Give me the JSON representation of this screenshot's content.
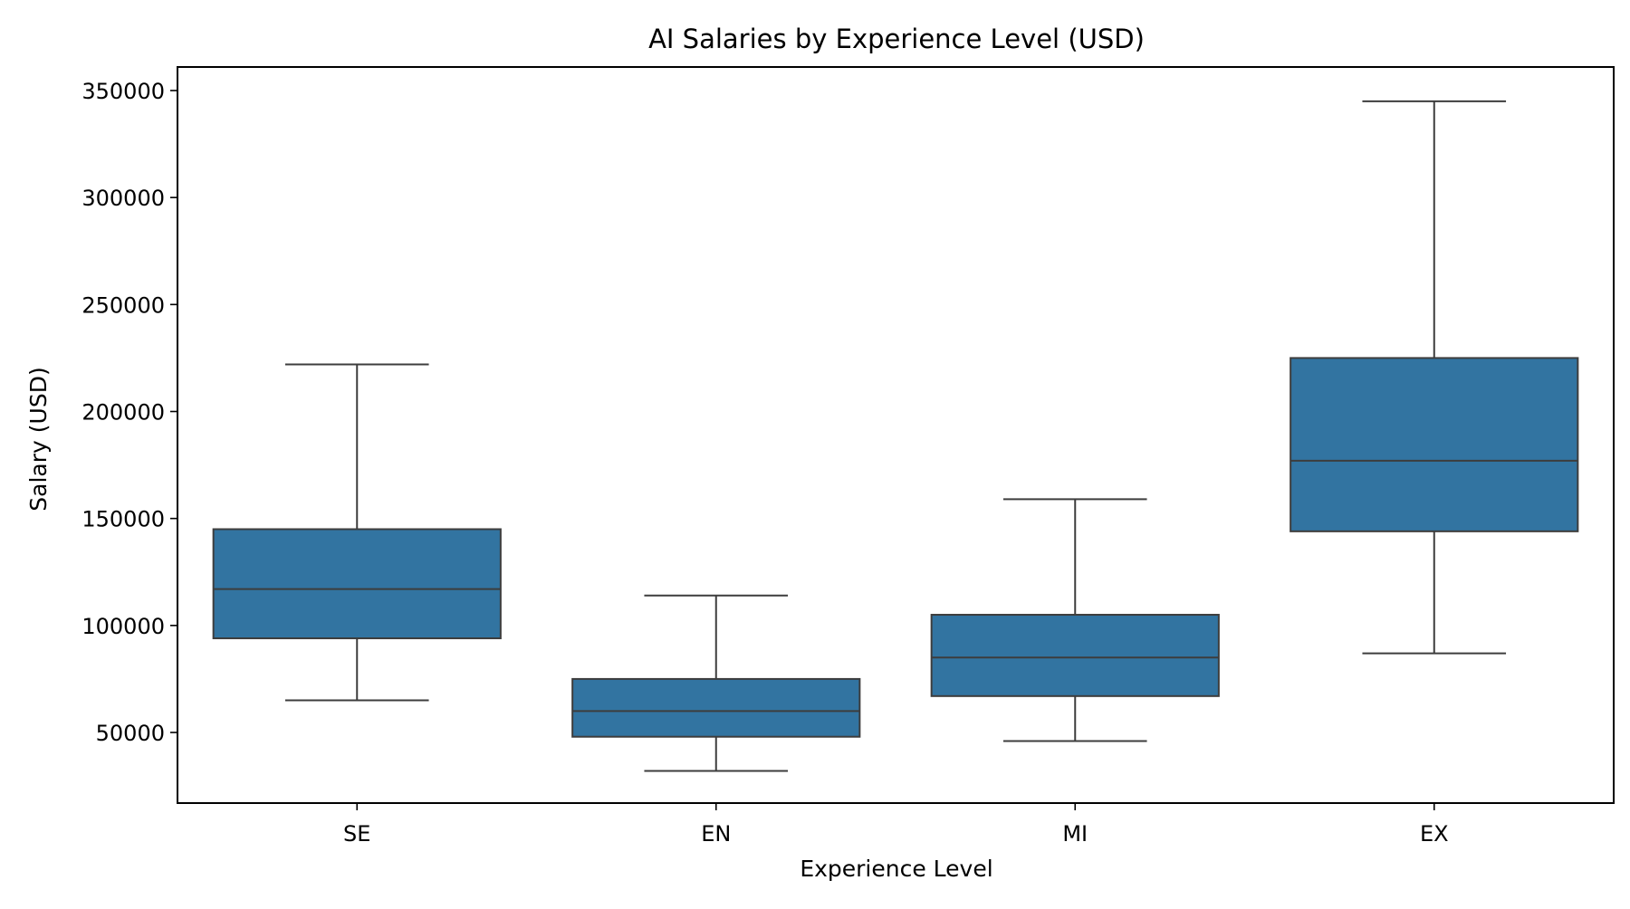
{
  "chart_data": {
    "type": "box",
    "title": "AI Salaries by Experience Level (USD)",
    "xlabel": "Experience Level",
    "ylabel": "Salary (USD)",
    "ylim": [
      17000,
      361000
    ],
    "yticks": [
      50000,
      100000,
      150000,
      200000,
      250000,
      300000,
      350000
    ],
    "ytick_labels": [
      "50000",
      "100000",
      "150000",
      "200000",
      "250000",
      "300000",
      "350000"
    ],
    "categories": [
      "SE",
      "EN",
      "MI",
      "EX"
    ],
    "series": [
      {
        "boxes": [
          {
            "category": "SE",
            "whisker_low": 65000,
            "q1": 94000,
            "median": 117000,
            "q3": 145000,
            "whisker_high": 222000
          },
          {
            "category": "EN",
            "whisker_low": 32000,
            "q1": 48000,
            "median": 60000,
            "q3": 75000,
            "whisker_high": 114000
          },
          {
            "category": "MI",
            "whisker_low": 46000,
            "q1": 67000,
            "median": 85000,
            "q3": 105000,
            "whisker_high": 159000
          },
          {
            "category": "EX",
            "whisker_low": 87000,
            "q1": 144000,
            "median": 177000,
            "q3": 225000,
            "whisker_high": 345000
          }
        ]
      }
    ],
    "grid": false,
    "legend": "none",
    "colors": {
      "box_fill": "#3274a1",
      "box_edge": "#3d3d3d",
      "axis": "#000000"
    }
  }
}
